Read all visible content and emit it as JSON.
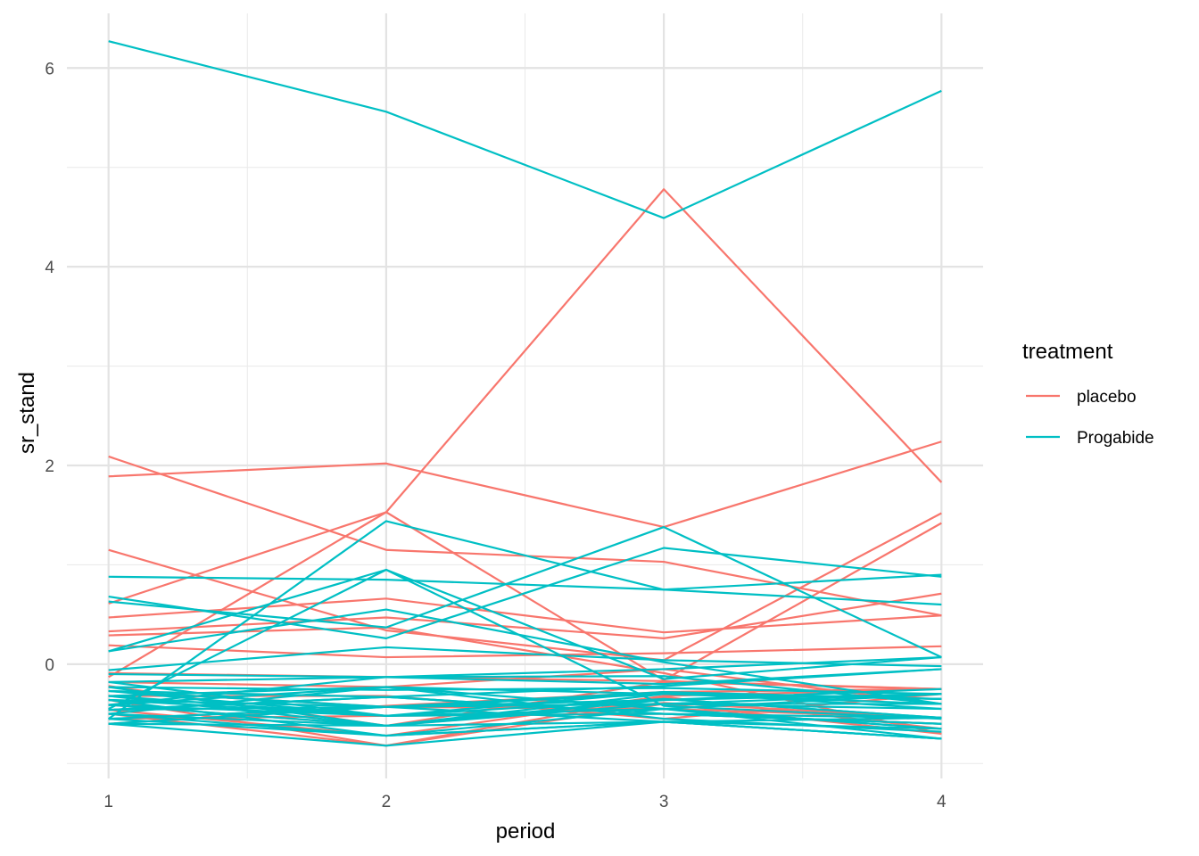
{
  "chart_data": {
    "type": "line",
    "title": "",
    "xlabel": "period",
    "ylabel": "sr_stand",
    "xlim": [
      0.85,
      4.15
    ],
    "ylim": [
      -1.15,
      6.55
    ],
    "x_ticks": [
      1,
      2,
      3,
      4
    ],
    "x_tick_labels": [
      "1",
      "2",
      "3",
      "4"
    ],
    "y_ticks": [
      0,
      2,
      4,
      6
    ],
    "y_tick_labels": [
      "0",
      "2",
      "4",
      "6"
    ],
    "grid": true,
    "legend": {
      "title": "treatment",
      "position": "right",
      "entries": [
        {
          "label": "placebo",
          "color": "#F8766D"
        },
        {
          "label": "Progabide",
          "color": "#00BFC4"
        }
      ]
    },
    "x": [
      1,
      2,
      3,
      4
    ],
    "series": [
      {
        "group": "placebo",
        "values": [
          -0.13,
          1.53,
          4.78,
          1.83
        ]
      },
      {
        "group": "placebo",
        "values": [
          1.89,
          2.02,
          1.38,
          2.24
        ]
      },
      {
        "group": "placebo",
        "values": [
          2.09,
          1.15,
          1.03,
          0.49
        ]
      },
      {
        "group": "placebo",
        "values": [
          1.15,
          0.34,
          0.04,
          1.52
        ]
      },
      {
        "group": "placebo",
        "values": [
          0.61,
          1.53,
          -0.16,
          1.42
        ]
      },
      {
        "group": "placebo",
        "values": [
          0.47,
          0.66,
          0.32,
          0.49
        ]
      },
      {
        "group": "placebo",
        "values": [
          0.33,
          0.47,
          0.26,
          0.71
        ]
      },
      {
        "group": "placebo",
        "values": [
          0.19,
          0.07,
          0.11,
          0.18
        ]
      },
      {
        "group": "placebo",
        "values": [
          -0.09,
          -0.13,
          -0.17,
          -0.25
        ]
      },
      {
        "group": "placebo",
        "values": [
          -0.27,
          -0.43,
          -0.45,
          -0.54
        ]
      },
      {
        "group": "placebo",
        "values": [
          -0.36,
          -0.82,
          -0.33,
          -0.65
        ]
      },
      {
        "group": "placebo",
        "values": [
          -0.41,
          -0.62,
          -0.18,
          -0.25
        ]
      },
      {
        "group": "placebo",
        "values": [
          -0.5,
          -0.82,
          -0.4,
          -0.7
        ]
      },
      {
        "group": "placebo",
        "values": [
          -0.46,
          -0.72,
          -0.32,
          -0.25
        ]
      },
      {
        "group": "placebo",
        "values": [
          -0.55,
          -0.52,
          -0.5,
          -0.6
        ]
      },
      {
        "group": "placebo",
        "values": [
          -0.6,
          -0.42,
          -0.28,
          -0.25
        ]
      },
      {
        "group": "placebo",
        "values": [
          0.29,
          0.37,
          -0.09,
          -0.7
        ]
      },
      {
        "group": "placebo",
        "values": [
          -0.18,
          -0.23,
          -0.05,
          -0.4
        ]
      },
      {
        "group": "placebo",
        "values": [
          -0.32,
          -0.32,
          -0.55,
          -0.3
        ]
      },
      {
        "group": "placebo",
        "values": [
          -0.22,
          -0.62,
          -0.39,
          -0.54
        ]
      },
      {
        "group": "Progabide",
        "values": [
          6.27,
          5.56,
          4.49,
          5.77
        ]
      },
      {
        "group": "Progabide",
        "values": [
          0.88,
          0.85,
          0.75,
          0.9
        ]
      },
      {
        "group": "Progabide",
        "values": [
          0.68,
          0.26,
          1.17,
          0.88
        ]
      },
      {
        "group": "Progabide",
        "values": [
          -0.55,
          1.44,
          0.75,
          0.6
        ]
      },
      {
        "group": "Progabide",
        "values": [
          -0.45,
          0.95,
          -0.15,
          0.07
        ]
      },
      {
        "group": "Progabide",
        "values": [
          0.63,
          0.37,
          1.38,
          0.07
        ]
      },
      {
        "group": "Progabide",
        "values": [
          0.13,
          0.55,
          0.02,
          -0.4
        ]
      },
      {
        "group": "Progabide",
        "values": [
          -0.06,
          0.17,
          0.04,
          -0.02
        ]
      },
      {
        "group": "Progabide",
        "values": [
          -0.1,
          -0.13,
          -0.2,
          -0.05
        ]
      },
      {
        "group": "Progabide",
        "values": [
          0.13,
          0.95,
          -0.42,
          -0.55
        ]
      },
      {
        "group": "Progabide",
        "values": [
          -0.18,
          -0.13,
          -0.05,
          0.07
        ]
      },
      {
        "group": "Progabide",
        "values": [
          -0.23,
          -0.26,
          -0.24,
          -0.3
        ]
      },
      {
        "group": "Progabide",
        "values": [
          -0.27,
          -0.43,
          -0.3,
          -0.4
        ]
      },
      {
        "group": "Progabide",
        "values": [
          -0.32,
          -0.23,
          -0.55,
          -0.68
        ]
      },
      {
        "group": "Progabide",
        "values": [
          -0.36,
          -0.52,
          -0.45,
          -0.3
        ]
      },
      {
        "group": "Progabide",
        "values": [
          -0.41,
          -0.62,
          -0.36,
          -0.25
        ]
      },
      {
        "group": "Progabide",
        "values": [
          -0.46,
          -0.33,
          -0.5,
          -0.6
        ]
      },
      {
        "group": "Progabide",
        "values": [
          -0.5,
          -0.72,
          -0.58,
          -0.75
        ]
      },
      {
        "group": "Progabide",
        "values": [
          -0.55,
          -0.43,
          -0.28,
          -0.35
        ]
      },
      {
        "group": "Progabide",
        "values": [
          -0.6,
          -0.82,
          -0.58,
          -0.75
        ]
      },
      {
        "group": "Progabide",
        "values": [
          -0.6,
          -0.62,
          -0.4,
          -0.45
        ]
      },
      {
        "group": "Progabide",
        "values": [
          -0.41,
          -0.13,
          -0.12,
          -0.4
        ]
      },
      {
        "group": "Progabide",
        "values": [
          -0.32,
          -0.52,
          -0.35,
          -0.54
        ]
      },
      {
        "group": "Progabide",
        "values": [
          -0.46,
          -0.43,
          -0.58,
          -0.65
        ]
      },
      {
        "group": "Progabide",
        "values": [
          -0.27,
          -0.33,
          -0.22,
          -0.05
        ]
      },
      {
        "group": "Progabide",
        "values": [
          -0.5,
          -0.23,
          -0.45,
          -0.75
        ]
      },
      {
        "group": "Progabide",
        "values": [
          -0.23,
          -0.62,
          -0.3,
          -0.35
        ]
      },
      {
        "group": "Progabide",
        "values": [
          -0.55,
          -0.72,
          -0.58,
          -0.54
        ]
      },
      {
        "group": "Progabide",
        "values": [
          -0.36,
          -0.43,
          -0.4,
          -0.3
        ]
      },
      {
        "group": "Progabide",
        "values": [
          -0.41,
          -0.52,
          -0.28,
          -0.45
        ]
      },
      {
        "group": "Progabide",
        "values": [
          -0.46,
          -0.33,
          -0.5,
          -0.6
        ]
      },
      {
        "group": "Progabide",
        "values": [
          -0.32,
          -0.62,
          -0.35,
          -0.54
        ]
      },
      {
        "group": "Progabide",
        "values": [
          -0.18,
          -0.52,
          -0.45,
          -0.65
        ]
      },
      {
        "group": "Progabide",
        "values": [
          -0.6,
          -0.43,
          -0.4,
          -0.4
        ]
      },
      {
        "group": "Progabide",
        "values": [
          -0.5,
          -0.62,
          -0.58,
          -0.75
        ]
      },
      {
        "group": "Progabide",
        "values": [
          -0.41,
          -0.23,
          -0.3,
          -0.35
        ]
      },
      {
        "group": "Progabide",
        "values": [
          -0.27,
          -0.52,
          -0.5,
          -0.54
        ]
      },
      {
        "group": "Progabide",
        "values": [
          -0.55,
          -0.43,
          -0.36,
          -0.3
        ]
      },
      {
        "group": "Progabide",
        "values": [
          -0.36,
          -0.72,
          -0.45,
          -0.65
        ]
      }
    ]
  }
}
